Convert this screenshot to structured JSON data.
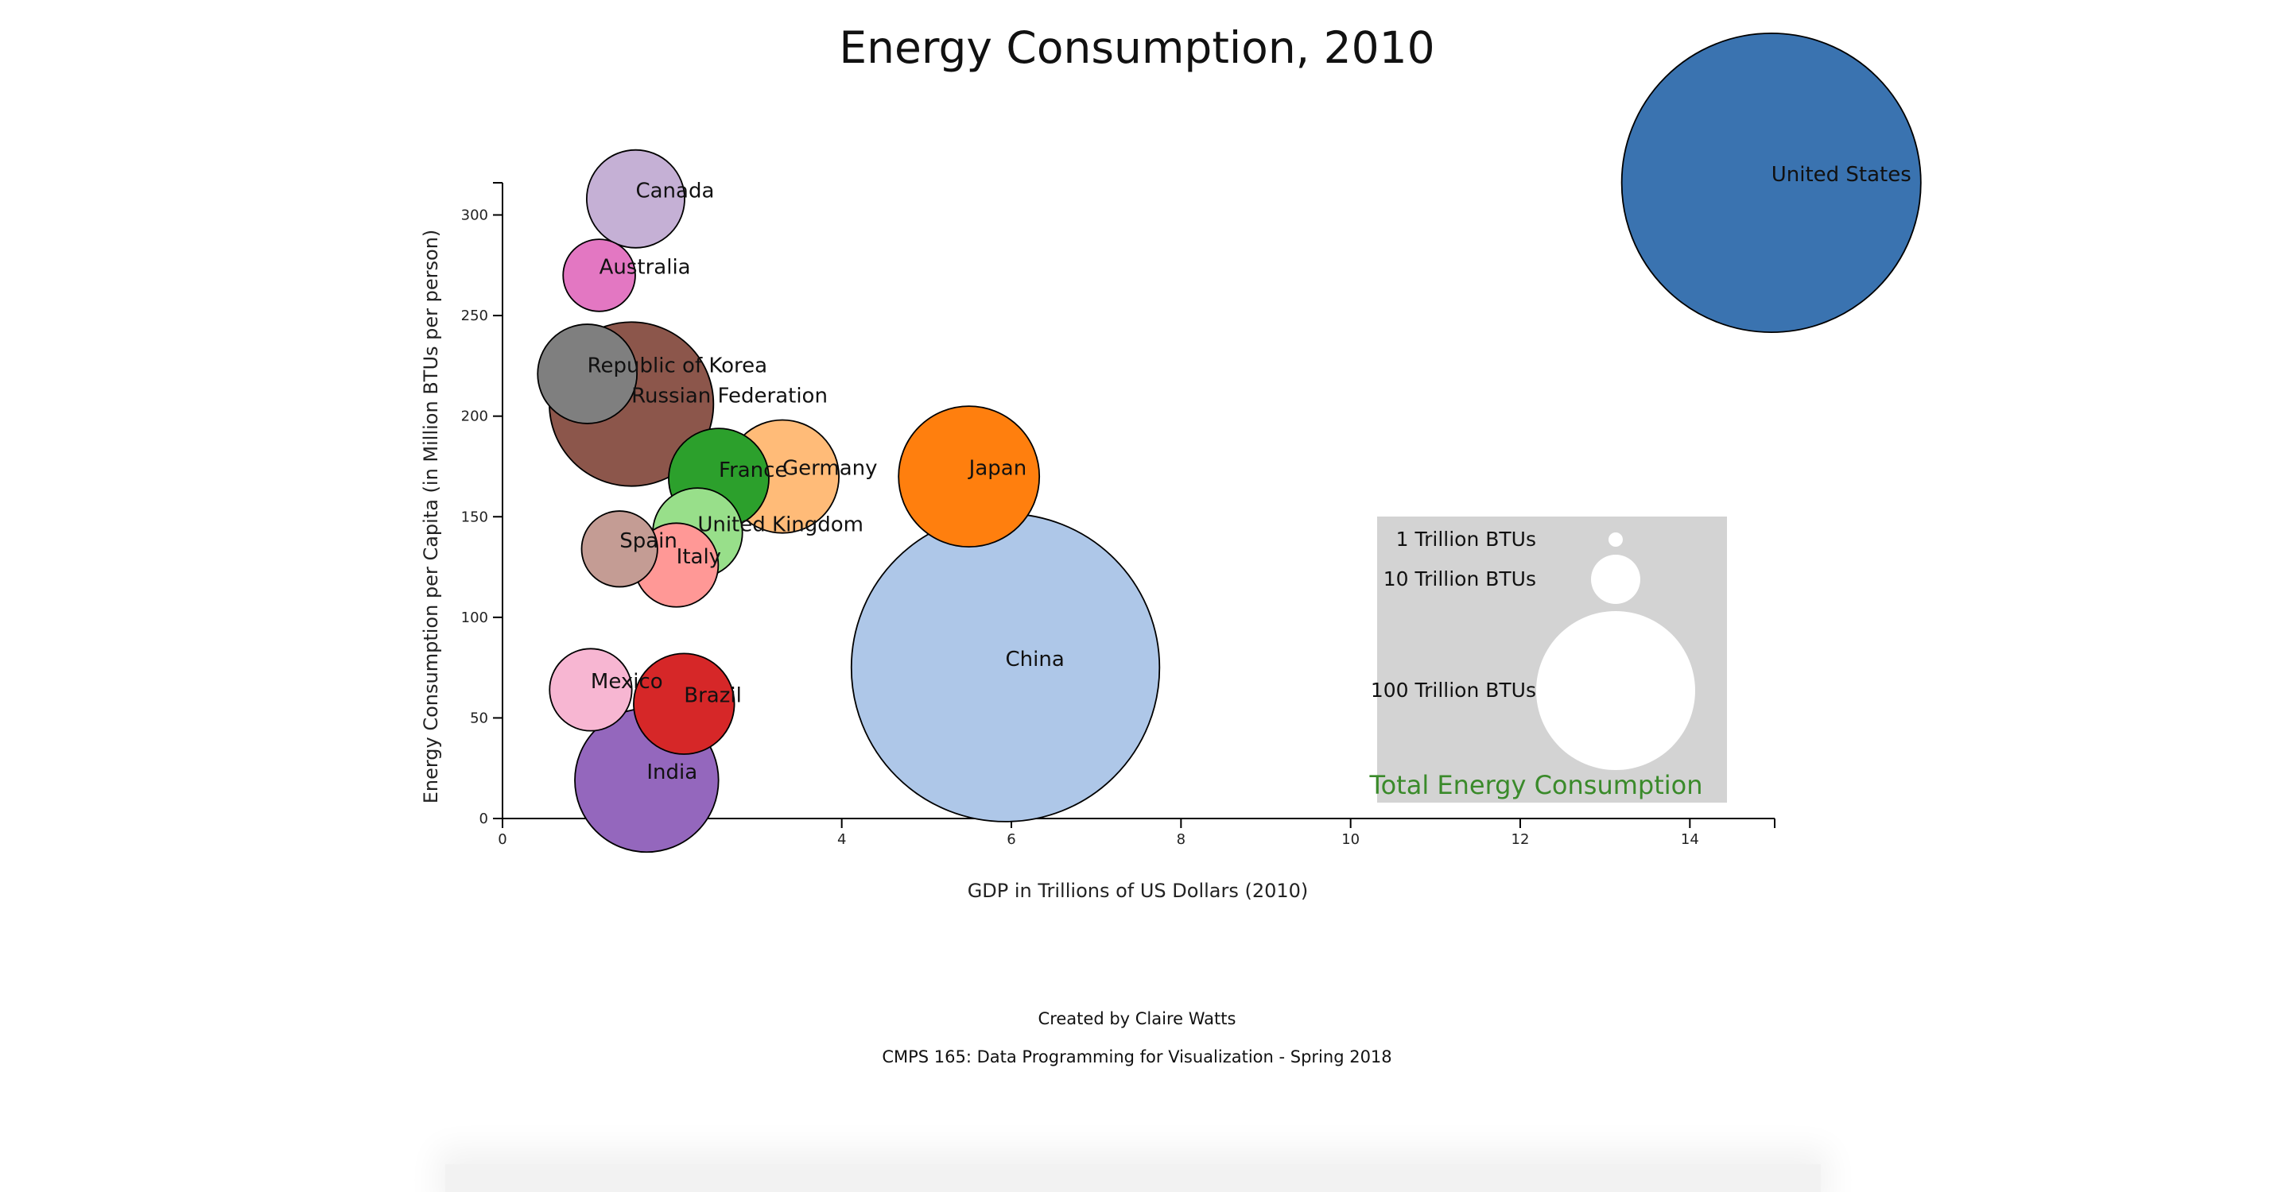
{
  "chart_data": {
    "type": "scatter",
    "title": "Energy Consumption, 2010",
    "xlabel": "GDP in Trillions of US Dollars (2010)",
    "ylabel": "Energy Consumption per Capita (in Million BTUs per person)",
    "xlim": [
      0,
      15
    ],
    "ylim": [
      0,
      316
    ],
    "x_ticks": [
      0,
      2,
      4,
      6,
      8,
      10,
      12,
      14
    ],
    "y_ticks": [
      0,
      50,
      100,
      150,
      200,
      250,
      300
    ],
    "size_encoding": "Total Energy Consumption",
    "points": [
      {
        "label": "United States",
        "x": 14.96,
        "y": 316,
        "size_trillion_btu": 98,
        "color": "#3a73b0"
      },
      {
        "label": "Canada",
        "x": 1.57,
        "y": 308,
        "size_trillion_btu": 10.5,
        "color": "#c5b0d5"
      },
      {
        "label": "Australia",
        "x": 1.14,
        "y": 270,
        "size_trillion_btu": 5.7,
        "color": "#e377c2"
      },
      {
        "label": "Republic of Korea",
        "x": 1.0,
        "y": 221,
        "size_trillion_btu": 10.8,
        "color": "#7f7f7f"
      },
      {
        "label": "Russian Federation",
        "x": 1.52,
        "y": 206,
        "size_trillion_btu": 29.5,
        "color": "#8c564b"
      },
      {
        "label": "France",
        "x": 2.55,
        "y": 169,
        "size_trillion_btu": 11.0,
        "color": "#2ca02c"
      },
      {
        "label": "Germany",
        "x": 3.3,
        "y": 170,
        "size_trillion_btu": 14.0,
        "color": "#ffbb78"
      },
      {
        "label": "Japan",
        "x": 5.5,
        "y": 170,
        "size_trillion_btu": 21.7,
        "color": "#ff7f0e"
      },
      {
        "label": "United Kingdom",
        "x": 2.3,
        "y": 142,
        "size_trillion_btu": 8.8,
        "color": "#98df8a"
      },
      {
        "label": "Spain",
        "x": 1.38,
        "y": 134,
        "size_trillion_btu": 6.3,
        "color": "#c49c94"
      },
      {
        "label": "Italy",
        "x": 2.05,
        "y": 126,
        "size_trillion_btu": 7.7,
        "color": "#ff9896"
      },
      {
        "label": "China",
        "x": 5.93,
        "y": 75,
        "size_trillion_btu": 104,
        "color": "#aec7e8"
      },
      {
        "label": "Mexico",
        "x": 1.04,
        "y": 64,
        "size_trillion_btu": 7.4,
        "color": "#f7b6d2"
      },
      {
        "label": "Brazil",
        "x": 2.14,
        "y": 57,
        "size_trillion_btu": 11.1,
        "color": "#d62728"
      },
      {
        "label": "India",
        "x": 1.7,
        "y": 19,
        "size_trillion_btu": 22.6,
        "color": "#9467bd"
      }
    ],
    "legend": {
      "title": "Total Energy Consumption",
      "items": [
        {
          "label": "1 Trillion BTUs",
          "size_trillion_btu": 1
        },
        {
          "label": "10 Trillion BTUs",
          "size_trillion_btu": 10
        },
        {
          "label": "100 Trillion BTUs",
          "size_trillion_btu": 100
        }
      ],
      "background": "#d3d3d3",
      "title_color": "#3a8a2a",
      "placement": "bottom-right"
    }
  },
  "credits": {
    "author": "Created by Claire Watts",
    "course": "CMPS 165: Data Programming for Visualization - Spring 2018"
  }
}
